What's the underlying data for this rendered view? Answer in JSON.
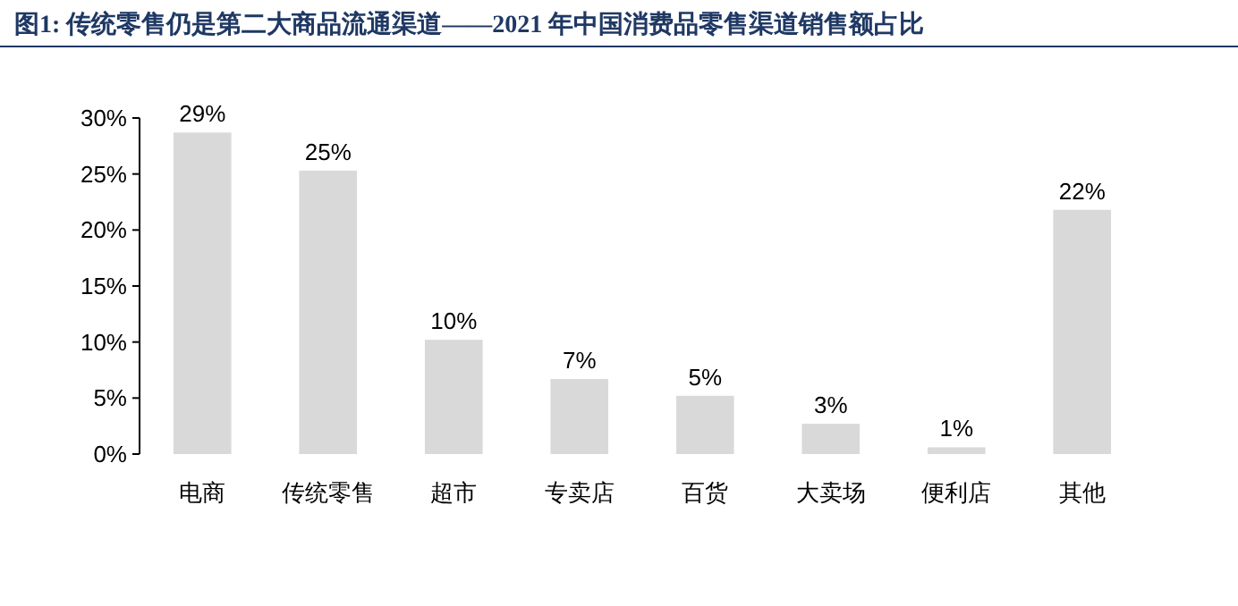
{
  "chart_data": {
    "type": "bar",
    "title": "图1: 传统零售仍是第二大商品流通渠道——2021 年中国消费品零售渠道销售额占比",
    "categories": [
      "电商",
      "传统零售",
      "超市",
      "专卖店",
      "百货",
      "大卖场",
      "便利店",
      "其他"
    ],
    "values": [
      28.7,
      25.3,
      10.2,
      6.7,
      5.2,
      2.7,
      0.6,
      21.8
    ],
    "value_labels": [
      "29%",
      "25%",
      "10%",
      "7%",
      "5%",
      "3%",
      "1%",
      "22%"
    ],
    "color": "#d9d9d9",
    "ylim": [
      0,
      30
    ],
    "yticks": [
      {
        "value": 0,
        "label": "0%"
      },
      {
        "value": 5,
        "label": "5%"
      },
      {
        "value": 10,
        "label": "10%"
      },
      {
        "value": 15,
        "label": "15%"
      },
      {
        "value": 20,
        "label": "20%"
      },
      {
        "value": 25,
        "label": "25%"
      },
      {
        "value": 30,
        "label": "30%"
      }
    ],
    "grid": false
  }
}
